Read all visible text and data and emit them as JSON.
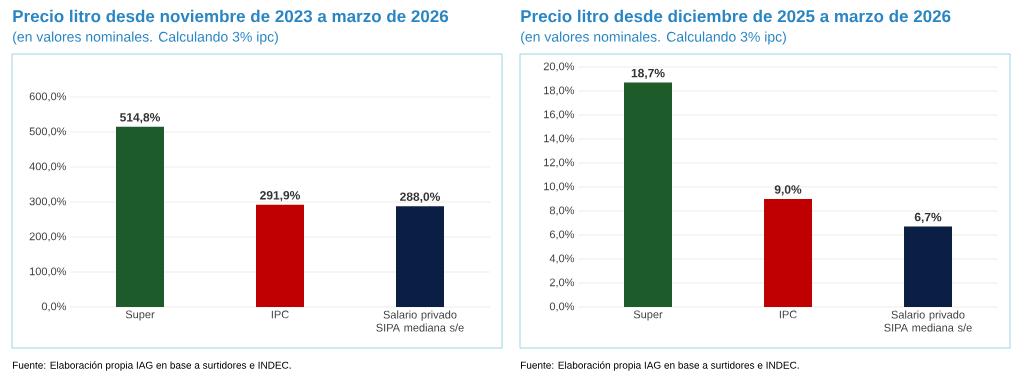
{
  "chart_data": [
    {
      "type": "bar",
      "title": "Precio litro desde noviembre de 2023 a marzo de 2026",
      "subtitle": "(en valores nominales. Calculando 3% ipc)",
      "categories": [
        "Super",
        "IPC",
        "Salario privado SIPA mediana s/e"
      ],
      "values": [
        514.8,
        291.9,
        288.0
      ],
      "colors": [
        "#1e5b2b",
        "#c00000",
        "#0b1f45"
      ],
      "value_labels": [
        "514,8%",
        "291,9%",
        "288,0%"
      ],
      "ylim": [
        0,
        600
      ],
      "yticks": [
        {
          "value": 0,
          "label": "0,0%"
        },
        {
          "value": 100,
          "label": "100,0%"
        },
        {
          "value": 200,
          "label": "200,0%"
        },
        {
          "value": 300,
          "label": "300,0%"
        },
        {
          "value": 400,
          "label": "400,0%"
        },
        {
          "value": 500,
          "label": "500,0%"
        },
        {
          "value": 600,
          "label": "600,0%"
        }
      ],
      "grid": "y",
      "annotations": [
        "Fuente: Elaboración propia IAG en base a surtidores e INDEC."
      ]
    },
    {
      "type": "bar",
      "title": "Precio litro desde diciembre de 2025 a marzo de 2026",
      "subtitle": "(en valores nominales. Calculando 3% ipc)",
      "categories": [
        "Super",
        "IPC",
        "Salario privado SIPA mediana s/e"
      ],
      "values": [
        18.7,
        9.0,
        6.7
      ],
      "colors": [
        "#1e5b2b",
        "#c00000",
        "#0b1f45"
      ],
      "value_labels": [
        "18,7%",
        "9,0%",
        "6,7%"
      ],
      "ylim": [
        0,
        20
      ],
      "yticks": [
        {
          "value": 0,
          "label": "0,0%"
        },
        {
          "value": 2,
          "label": "2,0%"
        },
        {
          "value": 4,
          "label": "4,0%"
        },
        {
          "value": 6,
          "label": "6,0%"
        },
        {
          "value": 8,
          "label": "8,0%"
        },
        {
          "value": 10,
          "label": "10,0%"
        },
        {
          "value": 12,
          "label": "12,0%"
        },
        {
          "value": 14,
          "label": "14,0%"
        },
        {
          "value": 16,
          "label": "16,0%"
        },
        {
          "value": 18,
          "label": "18,0%"
        },
        {
          "value": 20,
          "label": "20,0%"
        }
      ],
      "grid": "y",
      "annotations": [
        "Fuente: Elaboración propia IAG en base a surtidores e INDEC."
      ]
    }
  ]
}
